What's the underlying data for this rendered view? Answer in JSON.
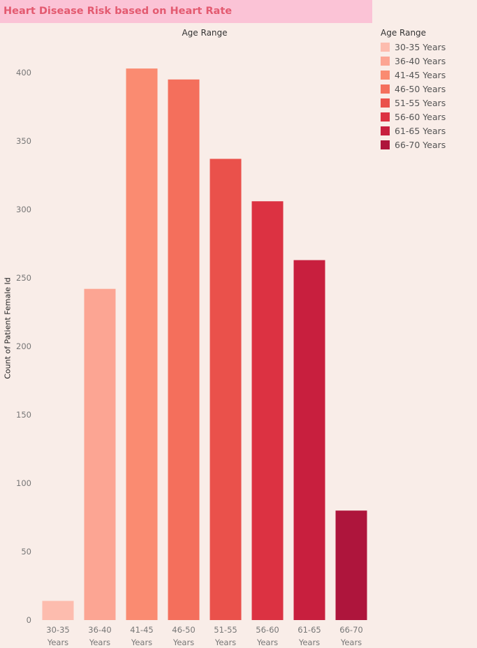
{
  "title": "Heart Disease Risk based on Heart Rate",
  "chart_data": {
    "type": "bar",
    "column_header": "Age Range",
    "ylabel": "Count of Patient Female Id",
    "ylim": [
      0,
      425
    ],
    "yticks": [
      0,
      50,
      100,
      150,
      200,
      250,
      300,
      350,
      400
    ],
    "categories": [
      "30-35 Years",
      "36-40 Years",
      "41-45 Years",
      "46-50 Years",
      "51-55 Years",
      "56-60 Years",
      "61-65 Years",
      "66-70 Years"
    ],
    "values": [
      14,
      242,
      403,
      395,
      337,
      306,
      263,
      80
    ],
    "colors": [
      "#fdbcae",
      "#fca593",
      "#fa8b71",
      "#f46f5c",
      "#ea514b",
      "#dc3242",
      "#c81f3e",
      "#ae153c"
    ],
    "legend": {
      "title": "Age Range",
      "position": "right",
      "entries": [
        "30-35 Years",
        "36-40 Years",
        "41-45 Years",
        "46-50 Years",
        "51-55 Years",
        "56-60 Years",
        "61-65 Years",
        "66-70 Years"
      ]
    },
    "grid": false
  }
}
